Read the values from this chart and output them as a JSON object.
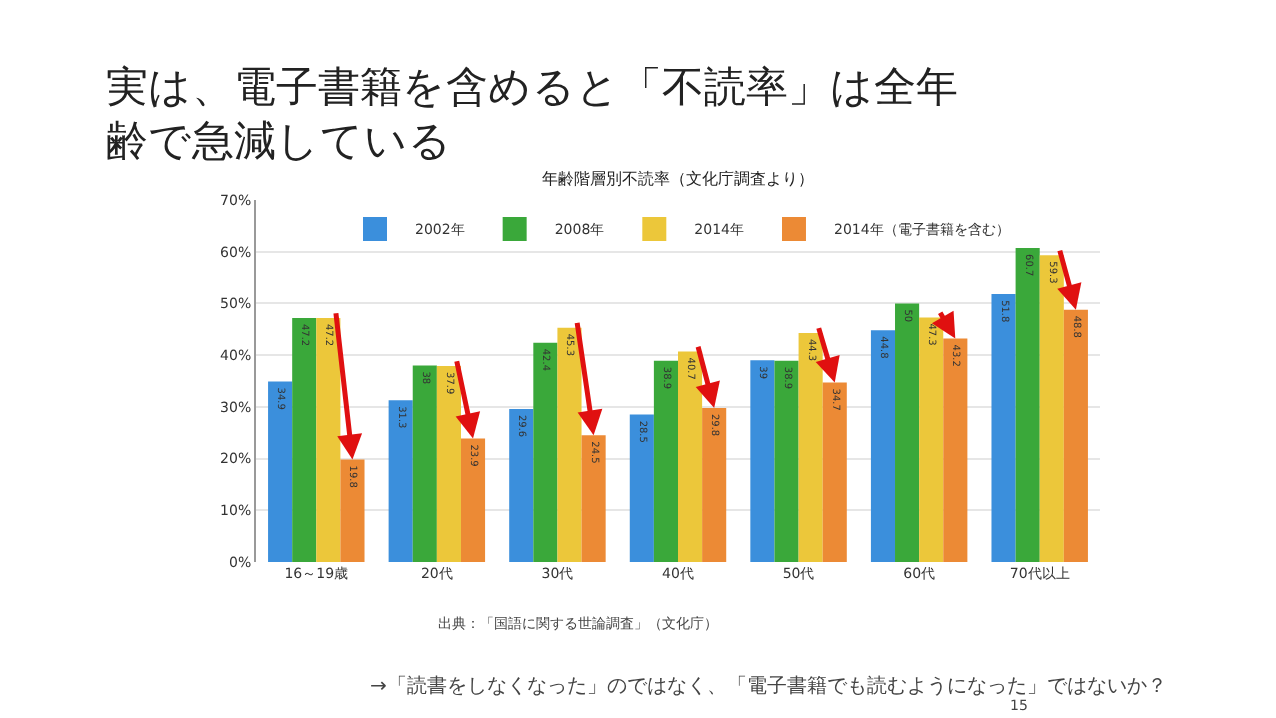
{
  "chart_data": {
    "type": "bar",
    "title": "実は、電子書籍を含めると「不読率」は全年齢で急減している",
    "subtitle": "年齢階層別不読率（文化庁調査より）",
    "categories": [
      "16～19歳",
      "20代",
      "30代",
      "40代",
      "50代",
      "60代",
      "70代以上"
    ],
    "series": [
      {
        "name": "2002年",
        "color": "#3b8fdc",
        "values": [
          34.9,
          31.3,
          29.6,
          28.5,
          39,
          44.8,
          51.8
        ]
      },
      {
        "name": "2008年",
        "color": "#3aa83a",
        "values": [
          47.2,
          38,
          42.4,
          38.9,
          38.9,
          50,
          60.7
        ]
      },
      {
        "name": "2014年",
        "color": "#ecc73a",
        "values": [
          47.2,
          37.9,
          45.3,
          40.7,
          44.3,
          47.3,
          59.3
        ]
      },
      {
        "name": "2014年（電子書籍を含む）",
        "color": "#ec8a35",
        "values": [
          19.8,
          23.9,
          24.5,
          29.8,
          34.7,
          43.2,
          48.8
        ]
      }
    ],
    "ylim": [
      0,
      70
    ],
    "yticks": [
      {
        "value": 0,
        "label": "0%"
      },
      {
        "value": 10,
        "label": "10%"
      },
      {
        "value": 20,
        "label": "20%"
      },
      {
        "value": 30,
        "label": "30%"
      },
      {
        "value": 40,
        "label": "40%"
      },
      {
        "value": 50,
        "label": "50%"
      },
      {
        "value": 60,
        "label": "60%"
      },
      {
        "value": 70,
        "label": "70%"
      }
    ],
    "grid": "y",
    "legend": "top",
    "data_labels": true,
    "annotations": [
      "出典：「国語に関する世論調査」（文化庁）",
      "→「読書をしなくなった」のではなく、「電子書籍でも読むようになった」ではないか？",
      "15"
    ]
  }
}
